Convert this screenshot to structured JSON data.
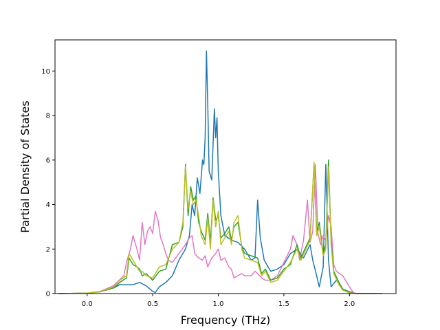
{
  "chart_data": {
    "type": "line",
    "title": "",
    "xlabel": "Frequency (THz)",
    "ylabel": "Partial Density of States",
    "xlim": [
      -0.245,
      2.355
    ],
    "ylim": [
      0,
      11.4
    ],
    "xticks": [
      0.0,
      0.5,
      1.0,
      1.5,
      2.0
    ],
    "xtick_labels": [
      "0.0",
      "0.5",
      "1.0",
      "1.5",
      "2.0"
    ],
    "yticks": [
      0,
      2,
      4,
      6,
      8,
      10
    ],
    "ytick_labels": [
      "0",
      "2",
      "4",
      "6",
      "8",
      "10"
    ],
    "grid": false,
    "legend": "none",
    "series": [
      {
        "color": "#1f77b4",
        "points": [
          [
            -0.22,
            0
          ],
          [
            0.0,
            0.02
          ],
          [
            0.1,
            0.08
          ],
          [
            0.2,
            0.25
          ],
          [
            0.25,
            0.4
          ],
          [
            0.3,
            0.4
          ],
          [
            0.35,
            0.4
          ],
          [
            0.4,
            0.5
          ],
          [
            0.45,
            0.35
          ],
          [
            0.5,
            0.1
          ],
          [
            0.52,
            0.05
          ],
          [
            0.55,
            0.3
          ],
          [
            0.6,
            0.5
          ],
          [
            0.65,
            0.8
          ],
          [
            0.7,
            1.5
          ],
          [
            0.75,
            2.0
          ],
          [
            0.78,
            2.6
          ],
          [
            0.8,
            4.0
          ],
          [
            0.82,
            3.5
          ],
          [
            0.84,
            5.2
          ],
          [
            0.86,
            4.5
          ],
          [
            0.88,
            6.0
          ],
          [
            0.89,
            5.8
          ],
          [
            0.9,
            7.0
          ],
          [
            0.91,
            10.9
          ],
          [
            0.92,
            8.5
          ],
          [
            0.93,
            5.5
          ],
          [
            0.95,
            5.1
          ],
          [
            0.97,
            8.3
          ],
          [
            0.98,
            7.0
          ],
          [
            0.99,
            7.9
          ],
          [
            1.0,
            5.5
          ],
          [
            1.02,
            3.5
          ],
          [
            1.05,
            2.6
          ],
          [
            1.1,
            2.4
          ],
          [
            1.15,
            2.3
          ],
          [
            1.2,
            2.0
          ],
          [
            1.25,
            1.5
          ],
          [
            1.28,
            1.6
          ],
          [
            1.3,
            4.2
          ],
          [
            1.32,
            2.5
          ],
          [
            1.35,
            1.5
          ],
          [
            1.4,
            1.0
          ],
          [
            1.45,
            1.1
          ],
          [
            1.5,
            1.3
          ],
          [
            1.55,
            1.8
          ],
          [
            1.6,
            2.0
          ],
          [
            1.65,
            1.6
          ],
          [
            1.7,
            2.2
          ],
          [
            1.72,
            1.5
          ],
          [
            1.75,
            0.8
          ],
          [
            1.77,
            0.3
          ],
          [
            1.8,
            1.2
          ],
          [
            1.82,
            5.8
          ],
          [
            1.84,
            1.5
          ],
          [
            1.86,
            0.3
          ],
          [
            1.9,
            0.6
          ],
          [
            1.95,
            0.2
          ],
          [
            2.0,
            0.08
          ],
          [
            2.05,
            0.01
          ],
          [
            2.1,
            0
          ]
        ]
      },
      {
        "color": "#e377c2",
        "points": [
          [
            -0.22,
            0
          ],
          [
            0.0,
            0.02
          ],
          [
            0.1,
            0.1
          ],
          [
            0.2,
            0.35
          ],
          [
            0.28,
            0.8
          ],
          [
            0.3,
            1.4
          ],
          [
            0.33,
            2.0
          ],
          [
            0.35,
            2.6
          ],
          [
            0.38,
            2.0
          ],
          [
            0.4,
            1.5
          ],
          [
            0.42,
            3.2
          ],
          [
            0.44,
            2.2
          ],
          [
            0.46,
            2.8
          ],
          [
            0.48,
            3.0
          ],
          [
            0.5,
            2.7
          ],
          [
            0.52,
            3.7
          ],
          [
            0.54,
            3.3
          ],
          [
            0.56,
            2.5
          ],
          [
            0.58,
            2.2
          ],
          [
            0.6,
            1.8
          ],
          [
            0.62,
            1.5
          ],
          [
            0.65,
            1.4
          ],
          [
            0.7,
            1.8
          ],
          [
            0.75,
            2.2
          ],
          [
            0.78,
            2.5
          ],
          [
            0.8,
            2.6
          ],
          [
            0.82,
            1.8
          ],
          [
            0.85,
            1.6
          ],
          [
            0.88,
            1.5
          ],
          [
            0.9,
            1.7
          ],
          [
            0.92,
            1.2
          ],
          [
            0.95,
            1.6
          ],
          [
            0.98,
            1.8
          ],
          [
            1.0,
            2.0
          ],
          [
            1.02,
            1.5
          ],
          [
            1.05,
            1.6
          ],
          [
            1.08,
            1.2
          ],
          [
            1.1,
            1.1
          ],
          [
            1.12,
            0.7
          ],
          [
            1.15,
            0.8
          ],
          [
            1.18,
            0.9
          ],
          [
            1.2,
            0.8
          ],
          [
            1.25,
            0.8
          ],
          [
            1.28,
            1.0
          ],
          [
            1.3,
            0.9
          ],
          [
            1.33,
            0.7
          ],
          [
            1.36,
            0.6
          ],
          [
            1.4,
            0.6
          ],
          [
            1.45,
            0.8
          ],
          [
            1.5,
            1.4
          ],
          [
            1.55,
            2.0
          ],
          [
            1.57,
            2.6
          ],
          [
            1.6,
            2.2
          ],
          [
            1.62,
            1.5
          ],
          [
            1.65,
            2.4
          ],
          [
            1.68,
            4.2
          ],
          [
            1.7,
            2.3
          ],
          [
            1.72,
            2.8
          ],
          [
            1.74,
            5.8
          ],
          [
            1.76,
            2.7
          ],
          [
            1.78,
            2.2
          ],
          [
            1.8,
            2.6
          ],
          [
            1.82,
            2.4
          ],
          [
            1.84,
            3.5
          ],
          [
            1.86,
            3.0
          ],
          [
            1.88,
            1.3
          ],
          [
            1.9,
            1.0
          ],
          [
            1.95,
            0.8
          ],
          [
            2.0,
            0.3
          ],
          [
            2.03,
            0.05
          ],
          [
            2.05,
            0
          ],
          [
            2.2,
            0
          ]
        ]
      },
      {
        "color": "#2ca02c",
        "points": [
          [
            -0.22,
            0
          ],
          [
            0.0,
            0.02
          ],
          [
            0.1,
            0.08
          ],
          [
            0.2,
            0.25
          ],
          [
            0.25,
            0.5
          ],
          [
            0.3,
            0.7
          ],
          [
            0.32,
            1.6
          ],
          [
            0.35,
            1.3
          ],
          [
            0.38,
            1.2
          ],
          [
            0.4,
            1.1
          ],
          [
            0.42,
            0.8
          ],
          [
            0.45,
            0.9
          ],
          [
            0.5,
            0.6
          ],
          [
            0.55,
            1.0
          ],
          [
            0.6,
            1.1
          ],
          [
            0.65,
            2.2
          ],
          [
            0.7,
            2.3
          ],
          [
            0.73,
            3.0
          ],
          [
            0.75,
            5.8
          ],
          [
            0.77,
            3.5
          ],
          [
            0.79,
            4.8
          ],
          [
            0.81,
            4.2
          ],
          [
            0.83,
            4.4
          ],
          [
            0.85,
            3.2
          ],
          [
            0.87,
            2.8
          ],
          [
            0.9,
            2.4
          ],
          [
            0.92,
            3.6
          ],
          [
            0.94,
            2.3
          ],
          [
            0.96,
            4.3
          ],
          [
            0.98,
            3.3
          ],
          [
            1.0,
            3.5
          ],
          [
            1.02,
            2.5
          ],
          [
            1.05,
            2.7
          ],
          [
            1.08,
            3.0
          ],
          [
            1.1,
            2.4
          ],
          [
            1.12,
            3.0
          ],
          [
            1.15,
            3.2
          ],
          [
            1.18,
            2.1
          ],
          [
            1.2,
            1.8
          ],
          [
            1.25,
            1.7
          ],
          [
            1.3,
            1.6
          ],
          [
            1.33,
            0.9
          ],
          [
            1.36,
            1.1
          ],
          [
            1.4,
            0.6
          ],
          [
            1.45,
            0.7
          ],
          [
            1.5,
            1.1
          ],
          [
            1.55,
            1.3
          ],
          [
            1.6,
            2.2
          ],
          [
            1.63,
            1.6
          ],
          [
            1.66,
            2.0
          ],
          [
            1.7,
            2.5
          ],
          [
            1.73,
            5.8
          ],
          [
            1.75,
            2.8
          ],
          [
            1.77,
            3.2
          ],
          [
            1.8,
            1.8
          ],
          [
            1.82,
            2.2
          ],
          [
            1.84,
            6.0
          ],
          [
            1.86,
            2.4
          ],
          [
            1.88,
            1.0
          ],
          [
            1.92,
            0.5
          ],
          [
            1.95,
            0.2
          ],
          [
            2.0,
            0.05
          ],
          [
            2.05,
            0
          ],
          [
            2.25,
            0
          ]
        ]
      },
      {
        "color": "#bcbd22",
        "points": [
          [
            -0.22,
            0
          ],
          [
            0.0,
            0.02
          ],
          [
            0.1,
            0.08
          ],
          [
            0.2,
            0.3
          ],
          [
            0.25,
            0.6
          ],
          [
            0.3,
            0.8
          ],
          [
            0.32,
            1.8
          ],
          [
            0.35,
            1.5
          ],
          [
            0.38,
            1.2
          ],
          [
            0.4,
            1.0
          ],
          [
            0.42,
            1.0
          ],
          [
            0.45,
            0.8
          ],
          [
            0.5,
            0.7
          ],
          [
            0.55,
            1.2
          ],
          [
            0.6,
            1.3
          ],
          [
            0.65,
            2.0
          ],
          [
            0.7,
            2.3
          ],
          [
            0.73,
            3.2
          ],
          [
            0.75,
            5.7
          ],
          [
            0.77,
            3.8
          ],
          [
            0.79,
            4.6
          ],
          [
            0.81,
            4.0
          ],
          [
            0.83,
            4.2
          ],
          [
            0.85,
            3.5
          ],
          [
            0.87,
            2.6
          ],
          [
            0.9,
            2.2
          ],
          [
            0.92,
            3.4
          ],
          [
            0.94,
            2.0
          ],
          [
            0.96,
            4.2
          ],
          [
            0.98,
            3.0
          ],
          [
            1.0,
            3.7
          ],
          [
            1.02,
            2.2
          ],
          [
            1.05,
            2.5
          ],
          [
            1.08,
            2.8
          ],
          [
            1.1,
            2.2
          ],
          [
            1.12,
            3.2
          ],
          [
            1.15,
            3.5
          ],
          [
            1.18,
            2.0
          ],
          [
            1.2,
            1.6
          ],
          [
            1.25,
            1.5
          ],
          [
            1.3,
            1.4
          ],
          [
            1.33,
            0.8
          ],
          [
            1.36,
            1.0
          ],
          [
            1.4,
            0.5
          ],
          [
            1.45,
            0.6
          ],
          [
            1.5,
            1.0
          ],
          [
            1.55,
            1.4
          ],
          [
            1.6,
            2.0
          ],
          [
            1.63,
            1.5
          ],
          [
            1.66,
            1.9
          ],
          [
            1.7,
            2.4
          ],
          [
            1.73,
            5.9
          ],
          [
            1.75,
            2.6
          ],
          [
            1.77,
            3.0
          ],
          [
            1.8,
            1.7
          ],
          [
            1.82,
            2.0
          ],
          [
            1.84,
            5.7
          ],
          [
            1.86,
            2.2
          ],
          [
            1.88,
            0.9
          ],
          [
            1.92,
            0.4
          ],
          [
            1.95,
            0.15
          ],
          [
            2.0,
            0.03
          ],
          [
            2.05,
            0
          ],
          [
            2.25,
            0
          ]
        ]
      }
    ]
  }
}
